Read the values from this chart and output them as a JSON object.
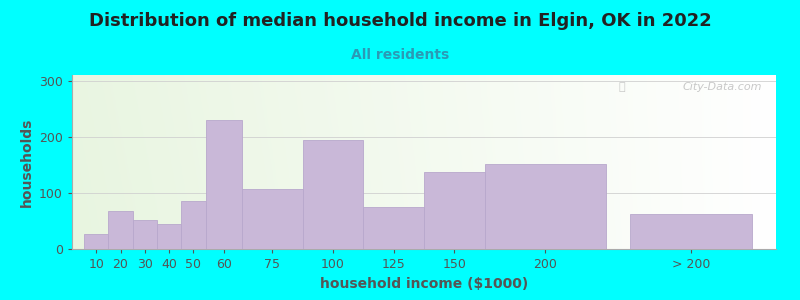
{
  "title": "Distribution of median household income in Elgin, OK in 2022",
  "subtitle": "All residents",
  "xlabel": "household income ($1000)",
  "ylabel": "households",
  "background_outer": "#00FFFF",
  "bar_color": "#c9b8d8",
  "bar_edge_color": "#b8a8cc",
  "bar_labels": [
    "10",
    "20",
    "30",
    "40",
    "50",
    "60",
    "75",
    "100",
    "125",
    "150",
    "200",
    "> 200"
  ],
  "bar_values": [
    27,
    68,
    52,
    45,
    85,
    230,
    107,
    194,
    75,
    138,
    152,
    62
  ],
  "bar_widths": [
    10,
    10,
    10,
    10,
    10,
    15,
    25,
    25,
    25,
    25,
    50,
    50
  ],
  "bar_lefts": [
    5,
    15,
    25,
    35,
    45,
    55,
    70,
    95,
    120,
    145,
    170,
    230
  ],
  "xlim": [
    0,
    290
  ],
  "ylim": [
    0,
    310
  ],
  "yticks": [
    0,
    100,
    200,
    300
  ],
  "watermark": "City-Data.com",
  "title_fontsize": 13,
  "subtitle_fontsize": 10,
  "axis_label_fontsize": 10,
  "tick_fontsize": 9,
  "title_color": "#222222",
  "subtitle_color": "#2a9ab5",
  "ylabel_color": "#555555",
  "xlabel_color": "#555555"
}
